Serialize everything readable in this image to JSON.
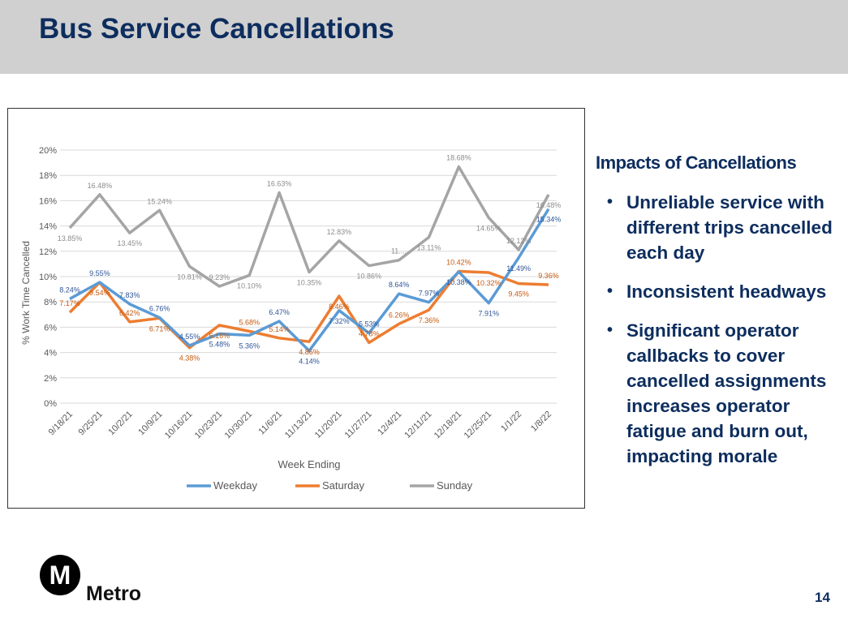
{
  "header": {
    "title": "Bus Service Cancellations"
  },
  "sidebar": {
    "heading": "Impacts of Cancellations",
    "bullets": [
      "Unreliable service with different trips cancelled each day",
      "Inconsistent headways",
      "Significant operator callbacks to cover cancelled assignments increases operator fatigue and burn out, impacting morale"
    ]
  },
  "footer": {
    "logo_text": "Metro",
    "logo_letter": "M",
    "page_number": "14"
  },
  "chart_data": {
    "type": "line",
    "title": "",
    "xlabel": "Week Ending",
    "ylabel": "% Work Time Cancelled",
    "ylim": [
      0,
      20
    ],
    "yticks": [
      "0%",
      "2%",
      "4%",
      "6%",
      "8%",
      "10%",
      "12%",
      "14%",
      "16%",
      "18%",
      "20%"
    ],
    "grid": true,
    "legend": "bottom",
    "categories": [
      "9/18/21",
      "9/25/21",
      "10/2/21",
      "10/9/21",
      "10/16/21",
      "10/23/21",
      "10/30/21",
      "11/6/21",
      "11/13/21",
      "11/20/21",
      "11/27/21",
      "12/4/21",
      "12/11/21",
      "12/18/21",
      "12/25/21",
      "1/1/22",
      "1/8/22"
    ],
    "series": [
      {
        "name": "Weekday",
        "color": "#5b9bd5",
        "labelColor": "#2f5597",
        "values": [
          8.24,
          9.55,
          7.83,
          6.76,
          4.55,
          5.48,
          5.36,
          6.47,
          4.14,
          7.32,
          5.53,
          8.64,
          7.97,
          10.38,
          7.91,
          11.49,
          15.34
        ],
        "labels": [
          "8.24%",
          "9.55%",
          "7.83%",
          "6.76%",
          "4.55%",
          "5.48%",
          "5.36%",
          "6.47%",
          "4.14%",
          "7.32%",
          "5.53%",
          "8.64%",
          "7.97%",
          "10.38%",
          "7.91%",
          "11.49%",
          "15.34%"
        ]
      },
      {
        "name": "Saturday",
        "color": "#ed7d31",
        "labelColor": "#c55a11",
        "values": [
          7.17,
          9.54,
          6.42,
          6.71,
          4.38,
          6.16,
          5.68,
          5.14,
          4.86,
          8.46,
          4.78,
          6.26,
          7.36,
          10.42,
          10.32,
          9.45,
          9.36
        ],
        "labels": [
          "7.17%",
          "9.54%",
          "6.42%",
          "6.71%",
          "4.38%",
          "6.16%",
          "5.68%",
          "5.14%",
          "4.86%",
          "8.46%",
          "4.78%",
          "6.26%",
          "7.36%",
          "10.42%",
          "10.32%",
          "9.45%",
          "9.36%"
        ]
      },
      {
        "name": "Sunday",
        "color": "#a5a5a5",
        "labelColor": "#8c8c8c",
        "values": [
          13.85,
          16.48,
          13.45,
          15.24,
          10.81,
          9.23,
          10.1,
          16.63,
          10.35,
          12.83,
          10.86,
          11.3,
          13.11,
          18.68,
          14.65,
          12.12,
          16.48
        ],
        "labels": [
          "13.85%",
          "16.48%",
          "13.45%",
          "15.24%",
          "10.81%",
          "9.23%",
          "10.10%",
          "16.63%",
          "10.35%",
          "12.83%",
          "10.86%",
          "11....",
          "13.11%",
          "18.68%",
          "14.65%",
          "12.12%",
          "16.48%"
        ]
      }
    ]
  }
}
